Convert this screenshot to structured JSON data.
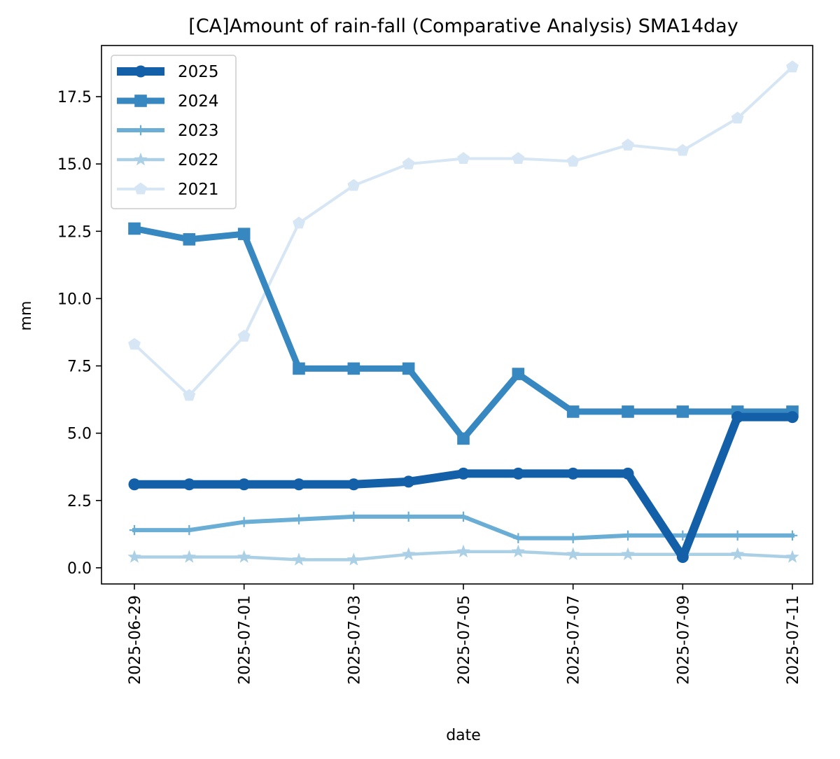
{
  "chart_data": {
    "type": "line",
    "title": "[CA]Amount of rain-fall (Comparative Analysis) SMA14day",
    "xlabel": "date",
    "ylabel": "mm",
    "x": [
      "2025-06-29",
      "2025-06-30",
      "2025-07-01",
      "2025-07-02",
      "2025-07-03",
      "2025-07-04",
      "2025-07-05",
      "2025-07-06",
      "2025-07-07",
      "2025-07-08",
      "2025-07-09",
      "2025-07-10",
      "2025-07-11"
    ],
    "x_tick_labels": [
      "2025-06-29",
      "2025-07-01",
      "2025-07-03",
      "2025-07-05",
      "2025-07-07",
      "2025-07-09",
      "2025-07-11"
    ],
    "y_tick_labels": [
      "0.0",
      "2.5",
      "5.0",
      "7.5",
      "10.0",
      "12.5",
      "15.0",
      "17.5"
    ],
    "ylim": [
      -0.6,
      19.4
    ],
    "grid": false,
    "legend_position": "upper-left",
    "series": [
      {
        "name": "2025",
        "color": "#1460a8",
        "marker": "circle",
        "values": [
          3.1,
          3.1,
          3.1,
          3.1,
          3.1,
          3.2,
          3.5,
          3.5,
          3.5,
          3.5,
          0.4,
          5.6,
          5.6
        ]
      },
      {
        "name": "2024",
        "color": "#3787c0",
        "marker": "square",
        "values": [
          12.6,
          12.2,
          12.4,
          7.4,
          7.4,
          7.4,
          4.8,
          7.2,
          5.8,
          5.8,
          5.8,
          5.8,
          5.8
        ]
      },
      {
        "name": "2023",
        "color": "#6aaed6",
        "marker": "plus",
        "values": [
          1.4,
          1.4,
          1.7,
          1.8,
          1.9,
          1.9,
          1.9,
          1.1,
          1.1,
          1.2,
          1.2,
          1.2,
          1.2
        ]
      },
      {
        "name": "2022",
        "color": "#abd0e6",
        "marker": "star",
        "values": [
          0.4,
          0.4,
          0.4,
          0.3,
          0.3,
          0.5,
          0.6,
          0.6,
          0.5,
          0.5,
          0.5,
          0.5,
          0.4
        ]
      },
      {
        "name": "2021",
        "color": "#d6e6f4",
        "marker": "pentagon",
        "values": [
          8.3,
          6.4,
          8.6,
          12.8,
          14.2,
          15.0,
          15.2,
          15.2,
          15.1,
          15.7,
          15.5,
          16.7,
          18.6
        ]
      }
    ]
  }
}
